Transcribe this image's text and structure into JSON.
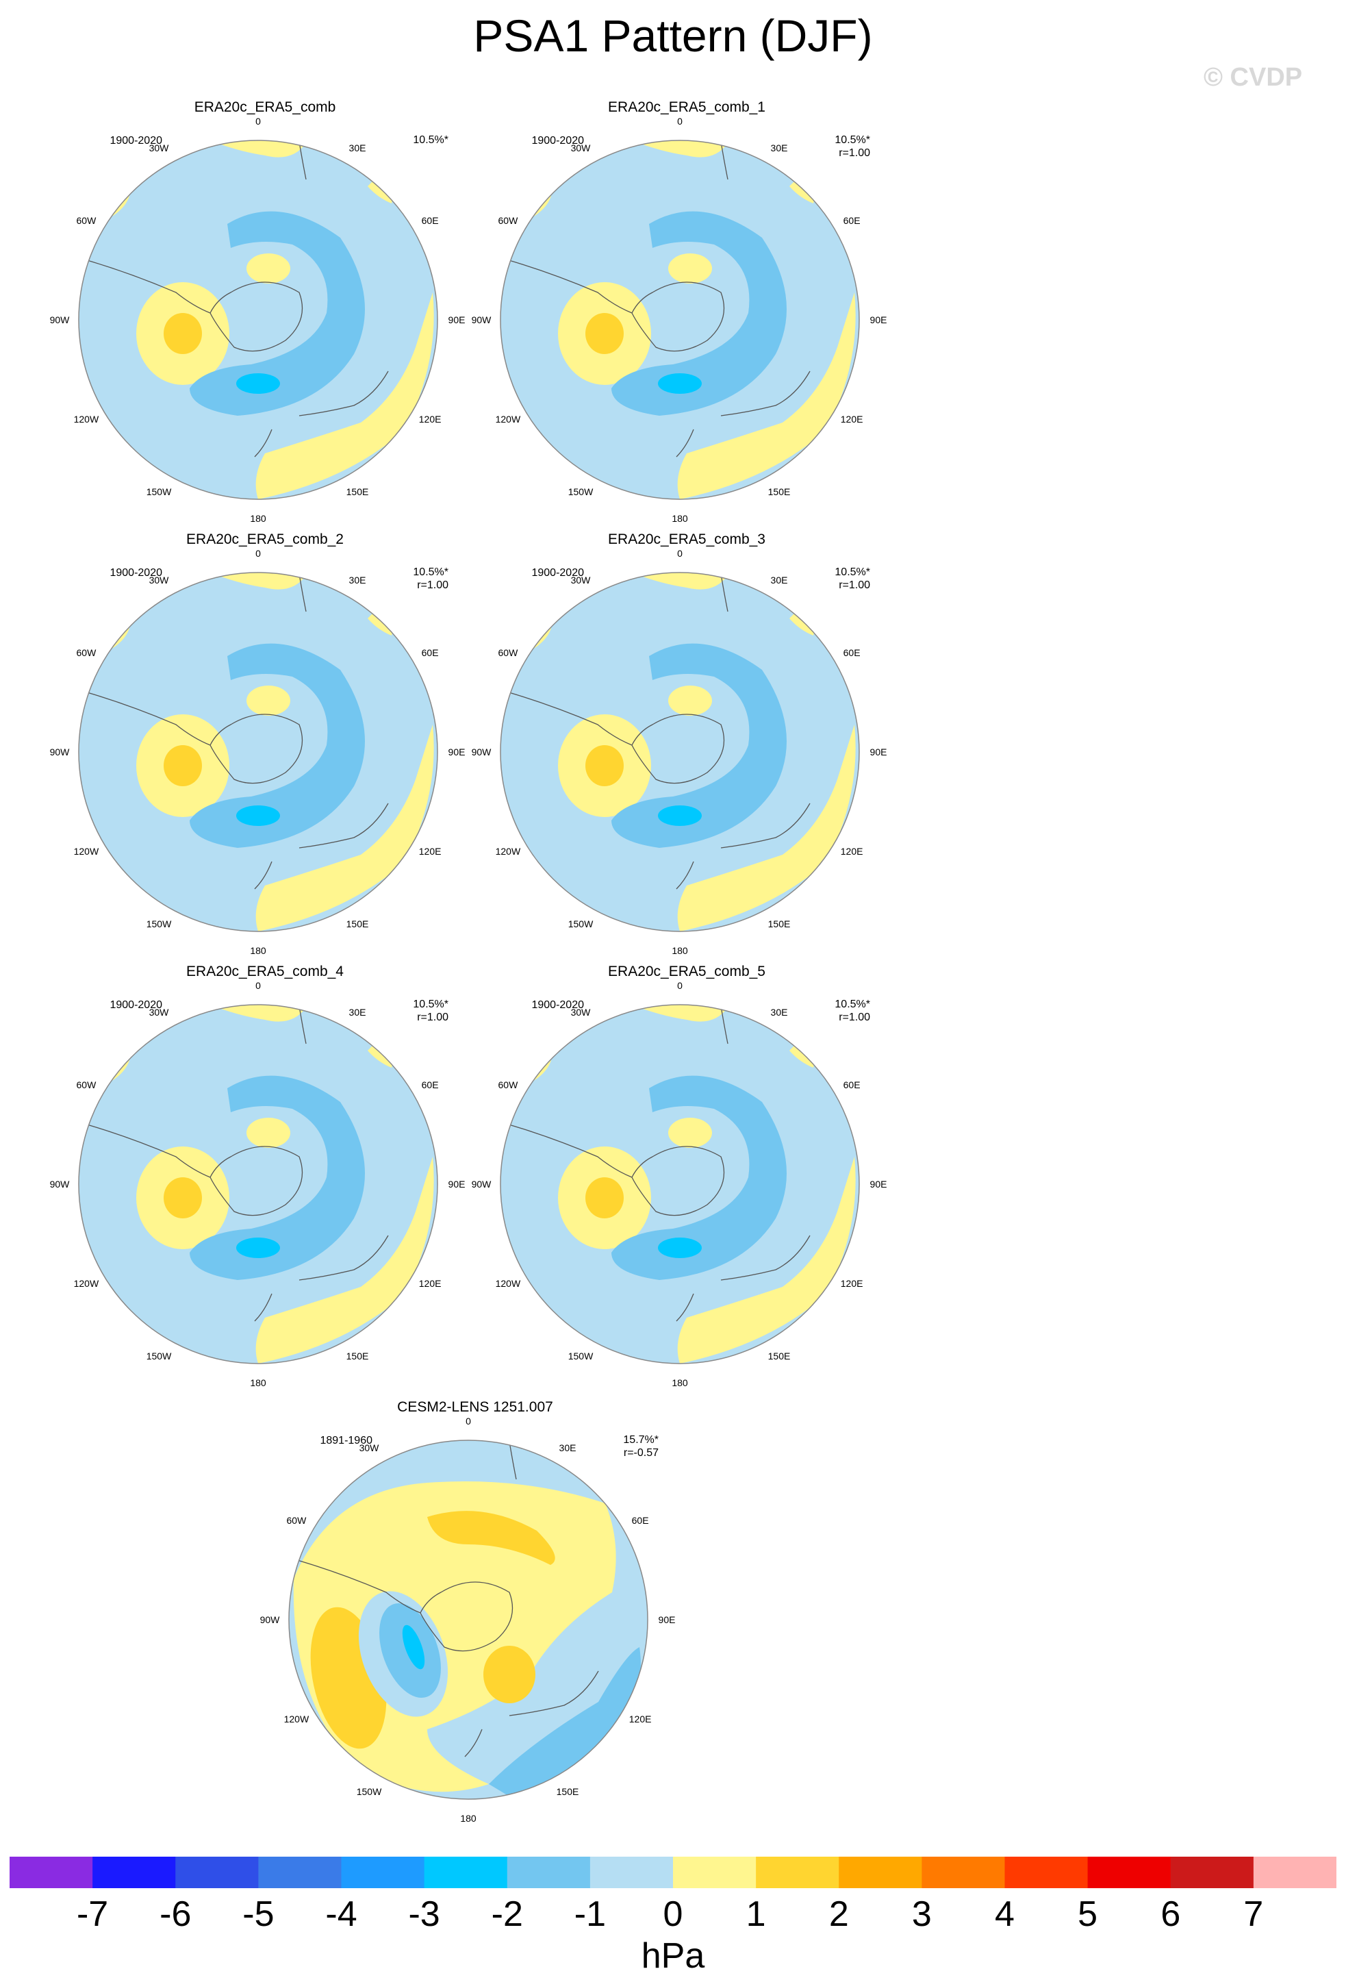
{
  "title": "PSA1 Pattern (DJF)",
  "copyright": "© CVDP",
  "panels": [
    {
      "name": "ERA20c_ERA5_comb",
      "period": "1900-2020",
      "pct": "10.5%*",
      "r": "",
      "variant": "obs"
    },
    {
      "name": "ERA20c_ERA5_comb_1",
      "period": "1900-2020",
      "pct": "10.5%*",
      "r": "r=1.00",
      "variant": "obs"
    },
    {
      "name": "ERA20c_ERA5_comb_2",
      "period": "1900-2020",
      "pct": "10.5%*",
      "r": "r=1.00",
      "variant": "obs"
    },
    {
      "name": "ERA20c_ERA5_comb_3",
      "period": "1900-2020",
      "pct": "10.5%*",
      "r": "r=1.00",
      "variant": "obs"
    },
    {
      "name": "ERA20c_ERA5_comb_4",
      "period": "1900-2020",
      "pct": "10.5%*",
      "r": "r=1.00",
      "variant": "obs"
    },
    {
      "name": "ERA20c_ERA5_comb_5",
      "period": "1900-2020",
      "pct": "10.5%*",
      "r": "r=1.00",
      "variant": "obs"
    },
    {
      "name": "CESM2-LENS 1251.007",
      "period": "1891-1960",
      "pct": "15.7%*",
      "r": "r=-0.57",
      "variant": "model"
    }
  ],
  "lon_labels": {
    "l0": "0",
    "l30e": "30E",
    "l60e": "60E",
    "l90e": "90E",
    "l120e": "120E",
    "l150e": "150E",
    "l180": "180",
    "l150w": "150W",
    "l120w": "120W",
    "l90w": "90W",
    "l60w": "60W",
    "l30w": "30W"
  },
  "colorbar": {
    "colors": [
      "#8a2be2",
      "#1a1aff",
      "#2f4fe8",
      "#3a7be8",
      "#1e9bff",
      "#00c8ff",
      "#73c6f0",
      "#b5def3",
      "#fff68f",
      "#ffd530",
      "#ffa800",
      "#ff7a00",
      "#ff3a00",
      "#ee0000",
      "#cc1a1a",
      "#ffb3b3"
    ],
    "labels": [
      "-7",
      "-6",
      "-5",
      "-4",
      "-3",
      "-2",
      "-1",
      "0",
      "1",
      "2",
      "3",
      "4",
      "5",
      "6",
      "7"
    ],
    "units": "hPa"
  }
}
